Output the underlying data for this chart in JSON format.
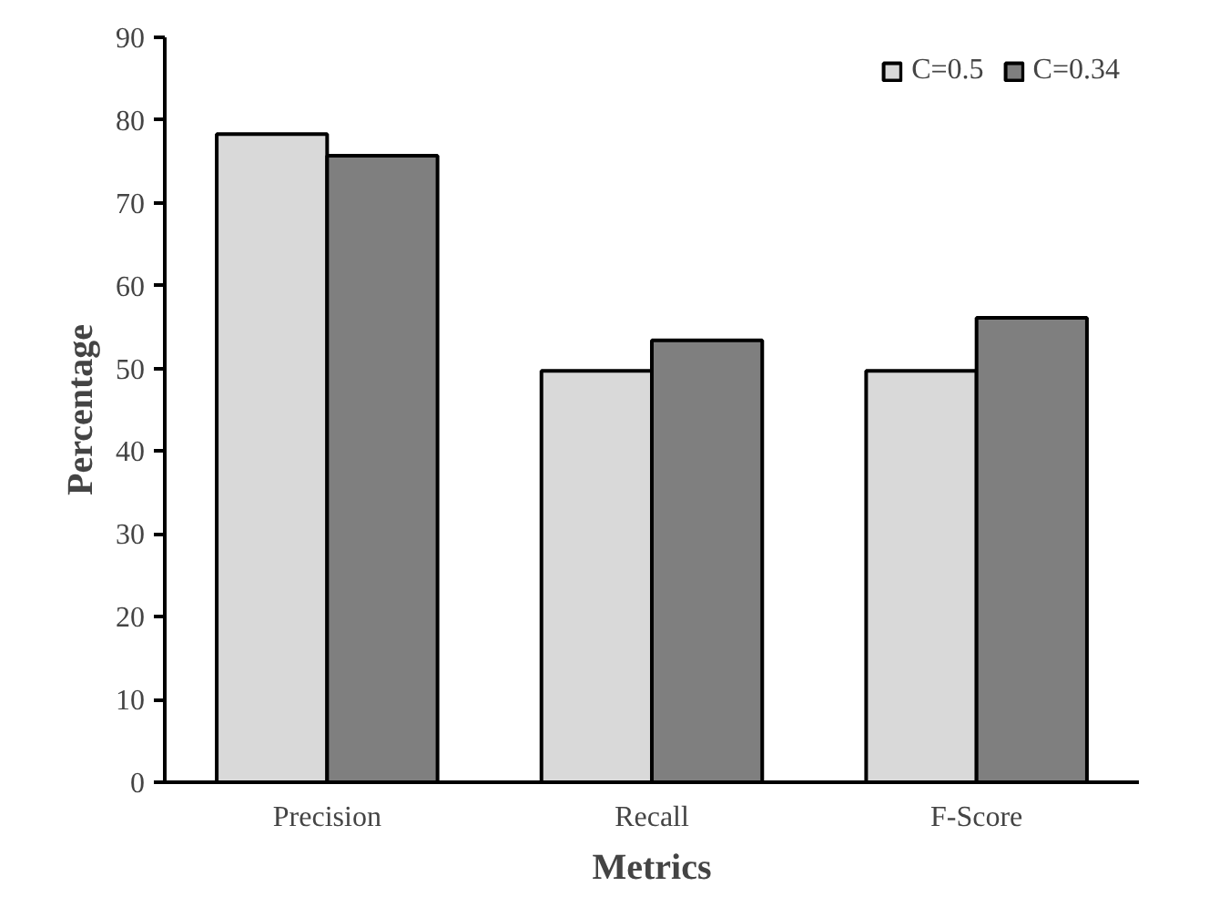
{
  "chart_data": {
    "type": "bar",
    "xlabel": "Metrics",
    "ylabel": "Percentage",
    "categories": [
      "Precision",
      "Recall",
      "F-Score"
    ],
    "series": [
      {
        "name": "C=0.5",
        "color": "#d9d9d9",
        "values": [
          78.3,
          49.7,
          49.7
        ]
      },
      {
        "name": "C=0.34",
        "color": "#7f7f7f",
        "values": [
          75.7,
          53.4,
          56.1
        ]
      }
    ],
    "ylim": [
      0,
      90
    ],
    "yticks": [
      0,
      10,
      20,
      30,
      40,
      50,
      60,
      70,
      80,
      90
    ],
    "grid": false,
    "legend": "top right"
  }
}
